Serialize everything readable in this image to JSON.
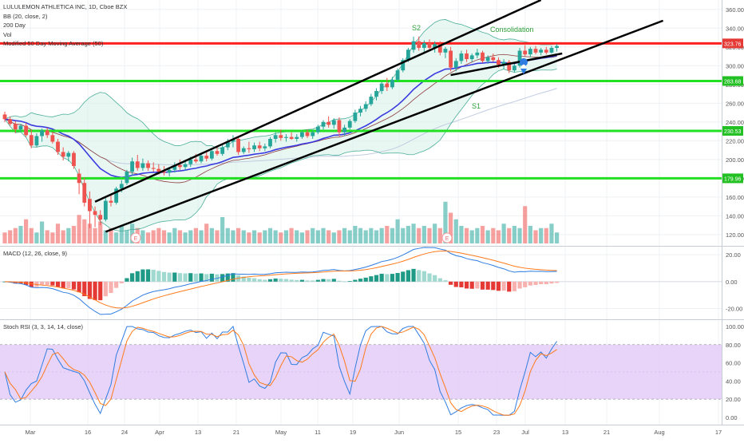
{
  "legend": {
    "symbol": "LULULEMON ATHLETICA INC, 1D, Cboe BZX",
    "bb": "BB (20, close, 2)",
    "ma200": "200 Day",
    "vol": "Vol",
    "ma50": "Modified 50 Day Moving Average (50)",
    "macd": "MACD (12, 26, close, 9)",
    "stoch": "Stoch RSI (3, 3, 14, 14, close)"
  },
  "annotations": [
    {
      "name": "s2-label",
      "text": "S2",
      "color": "#2e9e3a"
    },
    {
      "name": "consolidation-label",
      "text": "Consolidation",
      "color": "#2e9e3a"
    },
    {
      "name": "s1-label",
      "text": "S1",
      "color": "#2e9e3a"
    }
  ],
  "earnings_markers": [
    {
      "label": "E",
      "x_date": "Mar 25"
    },
    {
      "label": "E",
      "x_date": "Jun 9"
    }
  ],
  "colors": {
    "up": "#26a69a",
    "down": "#ef5350",
    "bb_line": "#4caf9a",
    "bb_fill": "#d8f2ea",
    "ma50": "#3a3ae0",
    "ma200": "#c0cbe0",
    "basis": "#8d3b3b",
    "macd_line": "#2f7de1",
    "signal_line": "#ff7a1a",
    "stoch_k": "#2f7de1",
    "stoch_d": "#ff7a1a",
    "stoch_band": "#e3ccf7",
    "resistance": "#ff2020",
    "support": "#22e022",
    "trend": "#000000",
    "label_red": "#e53935",
    "label_green": "#22c022"
  },
  "chart_data": [
    {
      "type": "candlestick",
      "title": "LULULEMON ATHLETICA INC, 1D, Cboe BZX",
      "x_labels": [
        "Mar",
        "16",
        "24",
        "Apr",
        "13",
        "21",
        "May",
        "11",
        "19",
        "Jun",
        "15",
        "23",
        "Jul",
        "13",
        "21",
        "Aug",
        "17"
      ],
      "y_ticks": [
        120,
        140,
        160,
        180,
        200,
        220,
        240,
        260,
        280,
        300,
        320,
        340,
        360
      ],
      "ylim": [
        108,
        370
      ],
      "grid": true,
      "horizontal_levels": [
        {
          "value": 323.76,
          "label": "323.76",
          "color": "red"
        },
        {
          "value": 283.68,
          "label": "283.68",
          "color": "green"
        },
        {
          "value": 230.53,
          "label": "230.53",
          "color": "green"
        },
        {
          "value": 179.96,
          "label": "179.96",
          "color": "green"
        }
      ],
      "trend_lines": [
        {
          "name": "upper-channel",
          "from": {
            "x_index": 17,
            "y": 155
          },
          "to": {
            "x_index": 101,
            "y": 370
          }
        },
        {
          "name": "middle-channel",
          "from": {
            "x_index": 19,
            "y": 123
          },
          "to": {
            "x_index": 124,
            "y": 348
          }
        },
        {
          "name": "lower-support",
          "from": {
            "x_index": 84,
            "y": 290
          },
          "to": {
            "x_index": 105,
            "y": 313
          }
        }
      ],
      "candles": [
        {
          "o": 248,
          "h": 251,
          "l": 240,
          "c": 243
        },
        {
          "o": 243,
          "h": 246,
          "l": 236,
          "c": 238
        },
        {
          "o": 238,
          "h": 241,
          "l": 228,
          "c": 232
        },
        {
          "o": 232,
          "h": 238,
          "l": 229,
          "c": 236
        },
        {
          "o": 236,
          "h": 239,
          "l": 224,
          "c": 226
        },
        {
          "o": 226,
          "h": 232,
          "l": 212,
          "c": 215
        },
        {
          "o": 215,
          "h": 228,
          "l": 213,
          "c": 225
        },
        {
          "o": 225,
          "h": 233,
          "l": 219,
          "c": 231
        },
        {
          "o": 231,
          "h": 234,
          "l": 223,
          "c": 226
        },
        {
          "o": 226,
          "h": 229,
          "l": 217,
          "c": 219
        },
        {
          "o": 219,
          "h": 222,
          "l": 205,
          "c": 208
        },
        {
          "o": 208,
          "h": 213,
          "l": 199,
          "c": 203
        },
        {
          "o": 203,
          "h": 209,
          "l": 198,
          "c": 207
        },
        {
          "o": 207,
          "h": 209,
          "l": 190,
          "c": 193
        },
        {
          "o": 185,
          "h": 190,
          "l": 163,
          "c": 175
        },
        {
          "o": 175,
          "h": 181,
          "l": 150,
          "c": 154
        },
        {
          "o": 158,
          "h": 166,
          "l": 127,
          "c": 145
        },
        {
          "o": 145,
          "h": 150,
          "l": 128,
          "c": 141
        },
        {
          "o": 141,
          "h": 146,
          "l": 130,
          "c": 136
        },
        {
          "o": 136,
          "h": 159,
          "l": 134,
          "c": 156
        },
        {
          "o": 156,
          "h": 162,
          "l": 150,
          "c": 154
        },
        {
          "o": 154,
          "h": 171,
          "l": 152,
          "c": 169
        },
        {
          "o": 169,
          "h": 178,
          "l": 165,
          "c": 174
        },
        {
          "o": 175,
          "h": 189,
          "l": 173,
          "c": 187
        },
        {
          "o": 187,
          "h": 202,
          "l": 183,
          "c": 198
        },
        {
          "o": 198,
          "h": 205,
          "l": 188,
          "c": 191
        },
        {
          "o": 191,
          "h": 201,
          "l": 188,
          "c": 196
        },
        {
          "o": 196,
          "h": 199,
          "l": 188,
          "c": 191
        },
        {
          "o": 191,
          "h": 197,
          "l": 187,
          "c": 190
        },
        {
          "o": 190,
          "h": 195,
          "l": 184,
          "c": 187
        },
        {
          "o": 187,
          "h": 193,
          "l": 183,
          "c": 186
        },
        {
          "o": 186,
          "h": 191,
          "l": 182,
          "c": 189
        },
        {
          "o": 189,
          "h": 197,
          "l": 186,
          "c": 194
        },
        {
          "o": 194,
          "h": 200,
          "l": 189,
          "c": 192
        },
        {
          "o": 192,
          "h": 198,
          "l": 188,
          "c": 195
        },
        {
          "o": 195,
          "h": 203,
          "l": 192,
          "c": 200
        },
        {
          "o": 200,
          "h": 206,
          "l": 196,
          "c": 198
        },
        {
          "o": 198,
          "h": 206,
          "l": 196,
          "c": 204
        },
        {
          "o": 204,
          "h": 210,
          "l": 198,
          "c": 201
        },
        {
          "o": 201,
          "h": 212,
          "l": 199,
          "c": 209
        },
        {
          "o": 209,
          "h": 214,
          "l": 204,
          "c": 206
        },
        {
          "o": 206,
          "h": 216,
          "l": 204,
          "c": 213
        },
        {
          "o": 213,
          "h": 222,
          "l": 210,
          "c": 219
        },
        {
          "o": 219,
          "h": 226,
          "l": 213,
          "c": 222
        },
        {
          "o": 222,
          "h": 224,
          "l": 205,
          "c": 208
        },
        {
          "o": 208,
          "h": 214,
          "l": 206,
          "c": 212
        },
        {
          "o": 212,
          "h": 219,
          "l": 207,
          "c": 211
        },
        {
          "o": 211,
          "h": 218,
          "l": 208,
          "c": 215
        },
        {
          "o": 215,
          "h": 219,
          "l": 209,
          "c": 212
        },
        {
          "o": 212,
          "h": 217,
          "l": 209,
          "c": 214
        },
        {
          "o": 214,
          "h": 224,
          "l": 212,
          "c": 222
        },
        {
          "o": 222,
          "h": 229,
          "l": 218,
          "c": 226
        },
        {
          "o": 226,
          "h": 232,
          "l": 220,
          "c": 223
        },
        {
          "o": 223,
          "h": 227,
          "l": 219,
          "c": 224
        },
        {
          "o": 224,
          "h": 229,
          "l": 221,
          "c": 222
        },
        {
          "o": 222,
          "h": 227,
          "l": 219,
          "c": 224
        },
        {
          "o": 224,
          "h": 231,
          "l": 222,
          "c": 229
        },
        {
          "o": 229,
          "h": 232,
          "l": 223,
          "c": 225
        },
        {
          "o": 225,
          "h": 231,
          "l": 222,
          "c": 229
        },
        {
          "o": 229,
          "h": 237,
          "l": 227,
          "c": 235
        },
        {
          "o": 235,
          "h": 242,
          "l": 232,
          "c": 240
        },
        {
          "o": 240,
          "h": 246,
          "l": 234,
          "c": 237
        },
        {
          "o": 237,
          "h": 244,
          "l": 233,
          "c": 242
        },
        {
          "o": 242,
          "h": 245,
          "l": 225,
          "c": 229
        },
        {
          "o": 229,
          "h": 237,
          "l": 225,
          "c": 234
        },
        {
          "o": 234,
          "h": 243,
          "l": 232,
          "c": 241
        },
        {
          "o": 241,
          "h": 253,
          "l": 239,
          "c": 250
        },
        {
          "o": 250,
          "h": 257,
          "l": 246,
          "c": 254
        },
        {
          "o": 254,
          "h": 262,
          "l": 251,
          "c": 259
        },
        {
          "o": 259,
          "h": 270,
          "l": 257,
          "c": 267
        },
        {
          "o": 267,
          "h": 276,
          "l": 263,
          "c": 273
        },
        {
          "o": 273,
          "h": 283,
          "l": 270,
          "c": 281
        },
        {
          "o": 281,
          "h": 287,
          "l": 273,
          "c": 277
        },
        {
          "o": 277,
          "h": 288,
          "l": 275,
          "c": 285
        },
        {
          "o": 285,
          "h": 297,
          "l": 283,
          "c": 295
        },
        {
          "o": 295,
          "h": 308,
          "l": 293,
          "c": 306
        },
        {
          "o": 306,
          "h": 319,
          "l": 304,
          "c": 317
        },
        {
          "o": 317,
          "h": 331,
          "l": 314,
          "c": 326
        },
        {
          "o": 326,
          "h": 331,
          "l": 316,
          "c": 319
        },
        {
          "o": 319,
          "h": 327,
          "l": 314,
          "c": 324
        },
        {
          "o": 324,
          "h": 328,
          "l": 316,
          "c": 319
        },
        {
          "o": 319,
          "h": 326,
          "l": 314,
          "c": 323
        },
        {
          "o": 323,
          "h": 326,
          "l": 311,
          "c": 314
        },
        {
          "o": 314,
          "h": 320,
          "l": 308,
          "c": 318
        },
        {
          "o": 316,
          "h": 320,
          "l": 294,
          "c": 298
        },
        {
          "o": 298,
          "h": 308,
          "l": 294,
          "c": 305
        },
        {
          "o": 305,
          "h": 316,
          "l": 302,
          "c": 313
        },
        {
          "o": 313,
          "h": 317,
          "l": 304,
          "c": 307
        },
        {
          "o": 307,
          "h": 313,
          "l": 304,
          "c": 311
        },
        {
          "o": 311,
          "h": 318,
          "l": 308,
          "c": 314
        },
        {
          "o": 314,
          "h": 316,
          "l": 303,
          "c": 305
        },
        {
          "o": 305,
          "h": 311,
          "l": 302,
          "c": 309
        },
        {
          "o": 309,
          "h": 313,
          "l": 304,
          "c": 306
        },
        {
          "o": 306,
          "h": 309,
          "l": 298,
          "c": 301
        },
        {
          "o": 301,
          "h": 307,
          "l": 296,
          "c": 304
        },
        {
          "o": 304,
          "h": 306,
          "l": 292,
          "c": 295
        },
        {
          "o": 295,
          "h": 303,
          "l": 293,
          "c": 300
        },
        {
          "o": 300,
          "h": 319,
          "l": 298,
          "c": 316
        },
        {
          "o": 316,
          "h": 322,
          "l": 310,
          "c": 312
        },
        {
          "o": 312,
          "h": 320,
          "l": 309,
          "c": 318
        },
        {
          "o": 318,
          "h": 321,
          "l": 312,
          "c": 314
        },
        {
          "o": 314,
          "h": 319,
          "l": 311,
          "c": 317
        },
        {
          "o": 317,
          "h": 320,
          "l": 312,
          "c": 314
        },
        {
          "o": 314,
          "h": 321,
          "l": 313,
          "c": 319
        },
        {
          "o": 319,
          "h": 323,
          "l": 315,
          "c": 321
        }
      ],
      "volume_rel": [
        0.25,
        0.3,
        0.35,
        0.4,
        0.55,
        0.35,
        0.25,
        0.5,
        0.3,
        0.25,
        0.45,
        0.3,
        0.35,
        0.4,
        0.65,
        0.55,
        0.45,
        0.35,
        0.5,
        0.3,
        0.35,
        0.25,
        0.4,
        0.3,
        0.45,
        0.35,
        0.3,
        0.25,
        0.3,
        0.35,
        0.3,
        0.25,
        0.35,
        0.3,
        0.25,
        0.3,
        0.35,
        0.3,
        0.45,
        0.35,
        0.3,
        0.6,
        0.35,
        0.3,
        0.35,
        0.3,
        0.25,
        0.3,
        0.25,
        0.3,
        0.35,
        0.3,
        0.25,
        0.3,
        0.35,
        0.3,
        0.25,
        0.3,
        0.35,
        0.3,
        0.35,
        0.3,
        0.25,
        0.3,
        0.35,
        0.3,
        0.4,
        0.35,
        0.3,
        0.35,
        0.3,
        0.35,
        0.4,
        0.35,
        0.55,
        0.35,
        0.4,
        0.45,
        0.35,
        0.4,
        0.35,
        0.45,
        0.35,
        0.95,
        0.7,
        0.55,
        0.4,
        0.35,
        0.3,
        0.35,
        0.4,
        0.3,
        0.35,
        0.3,
        0.45,
        0.35,
        0.4,
        0.35,
        0.85,
        0.4,
        0.3,
        0.35,
        0.35,
        0.45,
        0.25
      ]
    },
    {
      "type": "line",
      "title": "MACD (12, 26, close, 9)",
      "y_ticks": [
        20,
        0,
        -20
      ],
      "ylim": [
        -28,
        26
      ],
      "grid": true
    },
    {
      "type": "line",
      "title": "Stoch RSI (3, 3, 14, 14, close)",
      "y_ticks": [
        100,
        80,
        60,
        40,
        20,
        0
      ],
      "ylim": [
        -8,
        107
      ],
      "band": [
        20,
        80
      ],
      "grid": true
    }
  ]
}
